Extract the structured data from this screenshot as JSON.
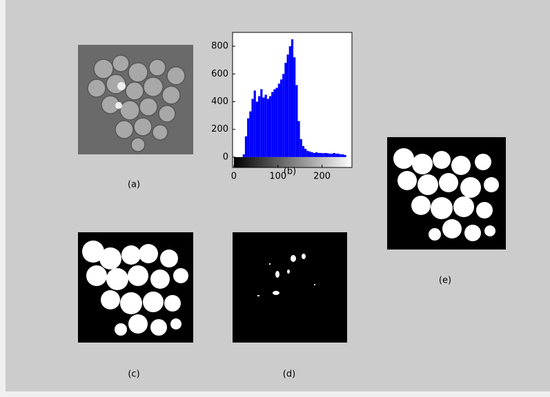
{
  "panels": [
    {
      "label": "(a)"
    },
    {
      "label": "(c)"
    },
    {
      "label": "(d)"
    },
    {
      "label": "(e)"
    }
  ],
  "chart_data": {
    "type": "histogram",
    "caption": "(b)",
    "color": "#0000ff",
    "bins": [
      0,
      5,
      10,
      15,
      20,
      25,
      30,
      35,
      40,
      45,
      50,
      55,
      60,
      65,
      70,
      75,
      80,
      85,
      90,
      95,
      100,
      105,
      110,
      115,
      120,
      125,
      130,
      135,
      140,
      145,
      150,
      155,
      160,
      165,
      170,
      175,
      180,
      185,
      190,
      195,
      200,
      205,
      210,
      215,
      220,
      225,
      230,
      235,
      240,
      245,
      250,
      255
    ],
    "counts": [
      0,
      0,
      0,
      0,
      20,
      150,
      280,
      330,
      420,
      480,
      400,
      440,
      490,
      430,
      450,
      420,
      440,
      470,
      490,
      500,
      530,
      560,
      600,
      680,
      740,
      800,
      850,
      720,
      520,
      260,
      130,
      80,
      60,
      45,
      40,
      35,
      30,
      35,
      30,
      30,
      28,
      30,
      28,
      25,
      25,
      30,
      25,
      25,
      20,
      20,
      15
    ],
    "xlim": [
      -3,
      268
    ],
    "ylim": [
      -75,
      900
    ],
    "xticks": [
      0,
      100,
      200
    ],
    "yticks": [
      0,
      200,
      400,
      600,
      800
    ]
  }
}
